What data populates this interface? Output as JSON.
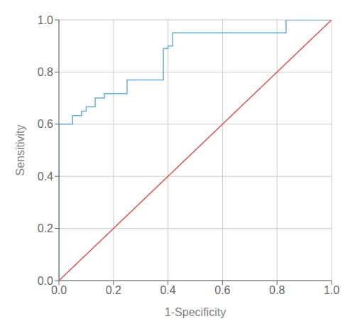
{
  "chart_data": {
    "type": "line",
    "xlabel": "1-Specificity",
    "ylabel": "Sensitivity",
    "xlim": [
      0.0,
      1.0
    ],
    "ylim": [
      0.0,
      1.0
    ],
    "xticks": [
      {
        "value": 0.0,
        "label": "0.0"
      },
      0.2,
      0.4,
      0.6,
      0.8,
      {
        "value": 1.0,
        "label": "1.0"
      }
    ],
    "yticks": [
      {
        "value": 0.0,
        "label": "0.0"
      },
      0.2,
      0.4,
      0.6,
      0.8,
      {
        "value": 1.0,
        "label": "1.0"
      }
    ],
    "grid": true,
    "series": [
      {
        "color": "#d9534f",
        "x": [
          0.0,
          1.0
        ],
        "values": [
          0.0,
          1.0
        ]
      },
      {
        "color": "#6aaed6",
        "x": [
          0.0,
          0.0,
          0.05,
          0.05,
          0.083,
          0.083,
          0.1,
          0.1,
          0.133,
          0.133,
          0.167,
          0.167,
          0.25,
          0.25,
          0.267,
          0.267,
          0.383,
          0.383,
          0.4,
          0.4,
          0.417,
          0.417,
          0.5,
          0.5,
          0.833,
          0.833,
          1.0
        ],
        "values": [
          0.0,
          0.6,
          0.6,
          0.633,
          0.633,
          0.65,
          0.65,
          0.667,
          0.667,
          0.7,
          0.7,
          0.717,
          0.717,
          0.77,
          0.77,
          0.77,
          0.77,
          0.89,
          0.89,
          0.9,
          0.9,
          0.95,
          0.95,
          0.95,
          0.95,
          1.0,
          1.0
        ]
      }
    ]
  }
}
